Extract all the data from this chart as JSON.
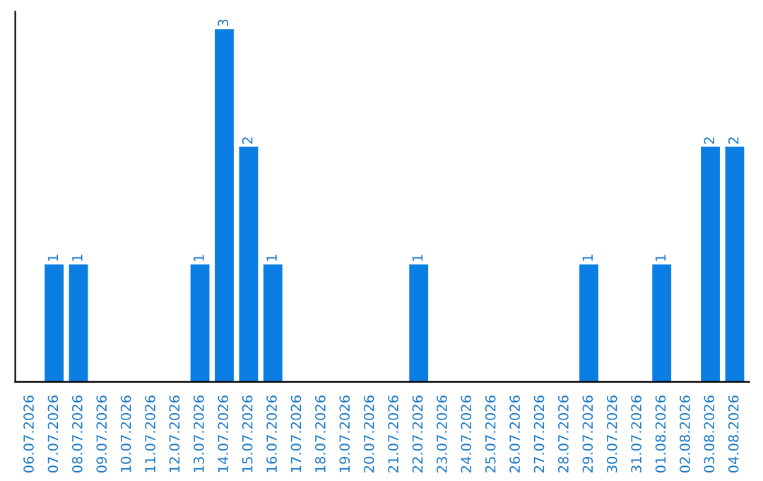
{
  "chart_data": {
    "type": "bar",
    "categories": [
      "06.07.2026",
      "07.07.2026",
      "08.07.2026",
      "09.07.2026",
      "10.07.2026",
      "11.07.2026",
      "12.07.2026",
      "13.07.2026",
      "14.07.2026",
      "15.07.2026",
      "16.07.2026",
      "17.07.2026",
      "18.07.2026",
      "19.07.2026",
      "20.07.2026",
      "21.07.2026",
      "22.07.2026",
      "23.07.2026",
      "24.07.2026",
      "25.07.2026",
      "26.07.2026",
      "27.07.2026",
      "28.07.2026",
      "29.07.2026",
      "30.07.2026",
      "31.07.2026",
      "01.08.2026",
      "02.08.2026",
      "03.08.2026",
      "04.08.2026"
    ],
    "values": [
      0,
      1,
      1,
      0,
      0,
      0,
      0,
      1,
      3,
      2,
      1,
      0,
      0,
      0,
      0,
      0,
      1,
      0,
      0,
      0,
      0,
      0,
      0,
      1,
      0,
      0,
      1,
      0,
      2,
      2
    ],
    "value_labels": [
      null,
      "1",
      "1",
      null,
      null,
      null,
      null,
      "1",
      "3",
      "2",
      "1",
      null,
      null,
      null,
      null,
      null,
      "1",
      null,
      null,
      null,
      null,
      null,
      null,
      "1",
      null,
      null,
      "1",
      null,
      "2",
      "2"
    ],
    "color": "#0a7ee2",
    "ylim": [
      0,
      3.15
    ],
    "tick_labels": "x",
    "grid": false,
    "legend": false
  }
}
